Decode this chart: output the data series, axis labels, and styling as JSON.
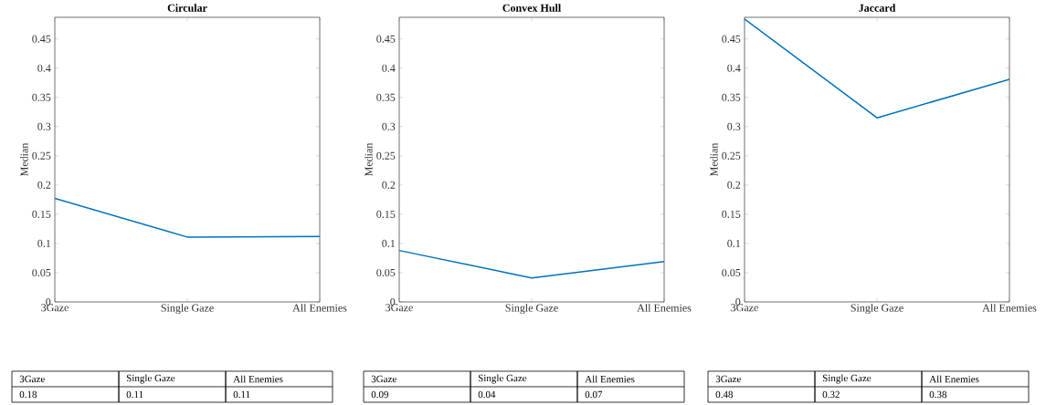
{
  "chart_data": [
    {
      "type": "line",
      "title": "Circular",
      "ylabel": "Median",
      "categories": [
        "3Gaze",
        "Single Gaze",
        "All Enemies"
      ],
      "values": [
        0.177,
        0.111,
        0.112
      ],
      "annotations": [
        "0.18",
        "0.11",
        "0.11"
      ],
      "color": "#0072bd",
      "ylim": [
        0,
        0.487
      ],
      "yticks": [
        0,
        0.05,
        0.1,
        0.15,
        0.2,
        0.25,
        0.3,
        0.35,
        0.4,
        0.45
      ]
    },
    {
      "type": "line",
      "title": "Convex Hull",
      "ylabel": "Median",
      "categories": [
        "3Gaze",
        "Single Gaze",
        "All Enemies"
      ],
      "values": [
        0.088,
        0.041,
        0.069
      ],
      "annotations": [
        "0.09",
        "0.04",
        "0.07"
      ],
      "color": "#0072bd",
      "ylim": [
        0,
        0.487
      ],
      "yticks": [
        0,
        0.05,
        0.1,
        0.15,
        0.2,
        0.25,
        0.3,
        0.35,
        0.4,
        0.45
      ]
    },
    {
      "type": "line",
      "title": "Jaccard",
      "ylabel": "Median",
      "categories": [
        "3Gaze",
        "Single Gaze",
        "All Enemies"
      ],
      "values": [
        0.484,
        0.315,
        0.381
      ],
      "annotations": [
        "0.48",
        "0.32",
        "0.38"
      ],
      "color": "#0072bd",
      "ylim": [
        0,
        0.487
      ],
      "yticks": [
        0,
        0.05,
        0.1,
        0.15,
        0.2,
        0.25,
        0.3,
        0.35,
        0.4,
        0.45
      ]
    }
  ]
}
